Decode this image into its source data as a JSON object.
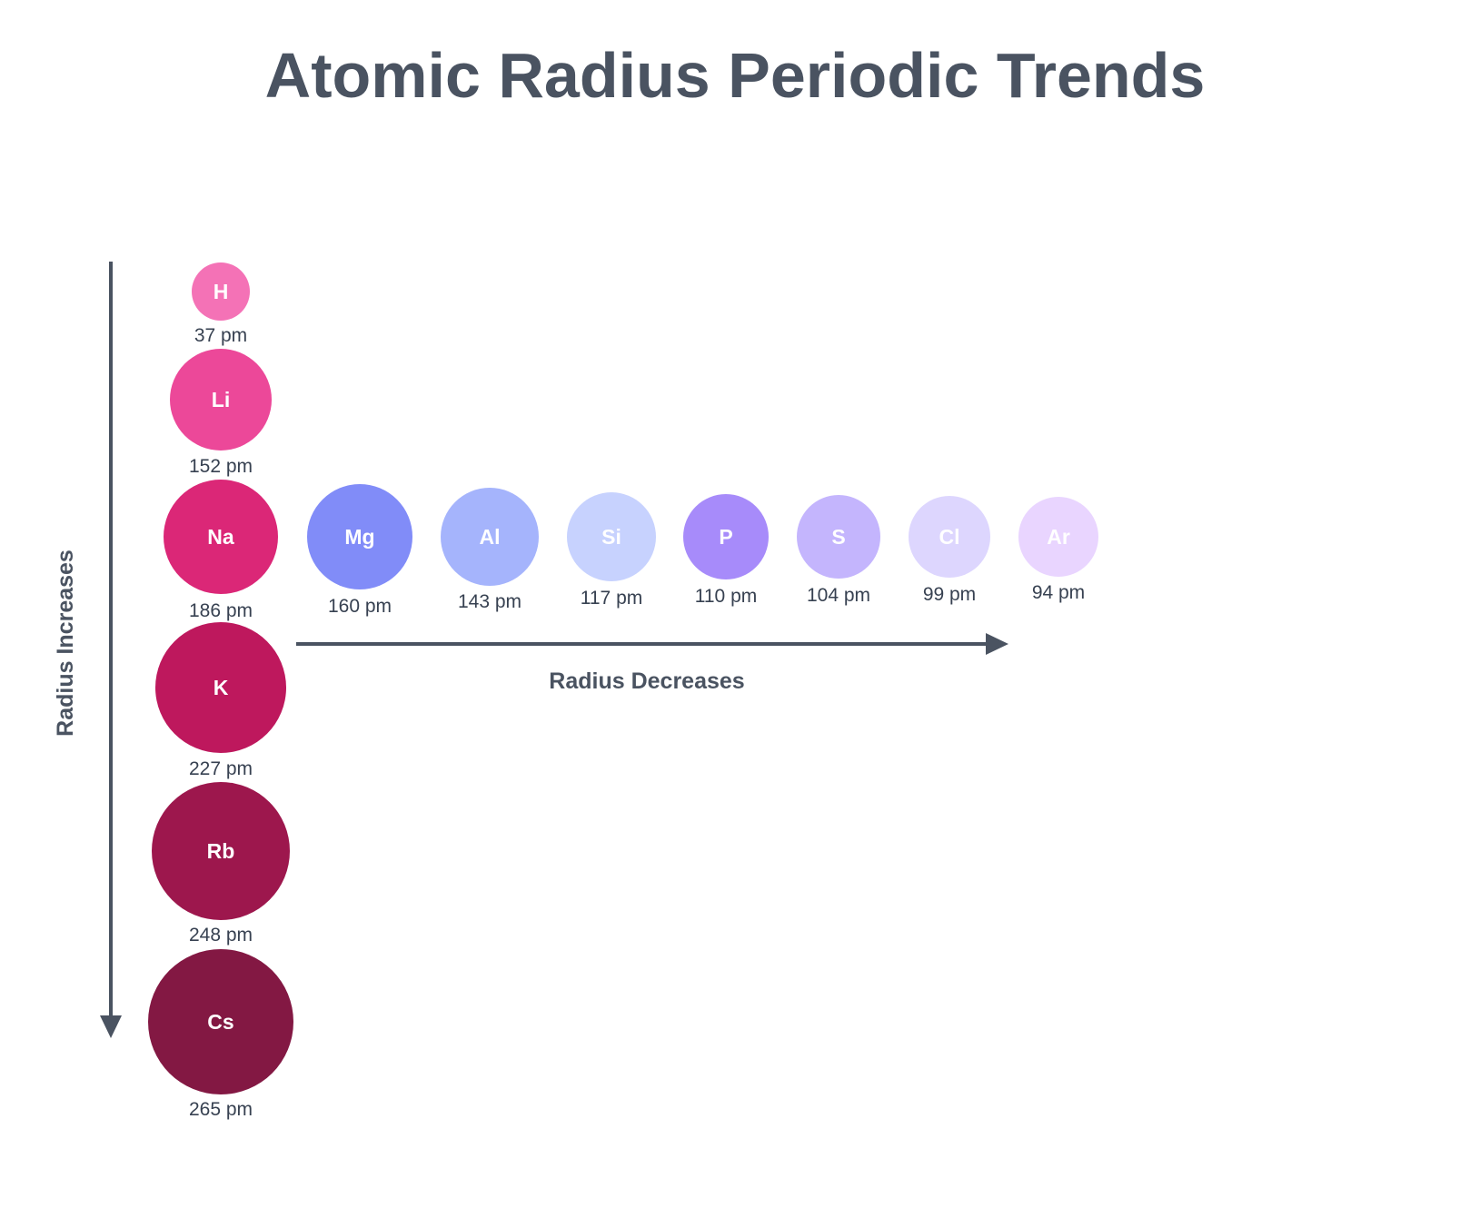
{
  "title": "Atomic Radius Periodic Trends",
  "vertical_label": "Radius Increases",
  "horizontal_label": "Radius Decreases",
  "colors": {
    "ink": "#4a5361",
    "white": "#ffffff"
  },
  "group1": [
    {
      "symbol": "H",
      "value": "37 pm",
      "color": "#f472b6"
    },
    {
      "symbol": "Li",
      "value": "152 pm",
      "color": "#ec4899"
    },
    {
      "symbol": "Na",
      "value": "186 pm",
      "color": "#db2777"
    },
    {
      "symbol": "K",
      "value": "227 pm",
      "color": "#be185d"
    },
    {
      "symbol": "Rb",
      "value": "248 pm",
      "color": "#9d174d"
    },
    {
      "symbol": "Cs",
      "value": "265 pm",
      "color": "#831843"
    }
  ],
  "period3": [
    {
      "symbol": "Mg",
      "value": "160 pm",
      "color": "#818cf8"
    },
    {
      "symbol": "Al",
      "value": "143 pm",
      "color": "#a5b4fc"
    },
    {
      "symbol": "Si",
      "value": "117 pm",
      "color": "#c7d2fe"
    },
    {
      "symbol": "P",
      "value": "110 pm",
      "color": "#a78bfa"
    },
    {
      "symbol": "S",
      "value": "104 pm",
      "color": "#c4b5fd"
    },
    {
      "symbol": "Cl",
      "value": "99 pm",
      "color": "#ddd6fe"
    },
    {
      "symbol": "Ar",
      "value": "94 pm",
      "color": "#e9d5ff"
    }
  ]
}
